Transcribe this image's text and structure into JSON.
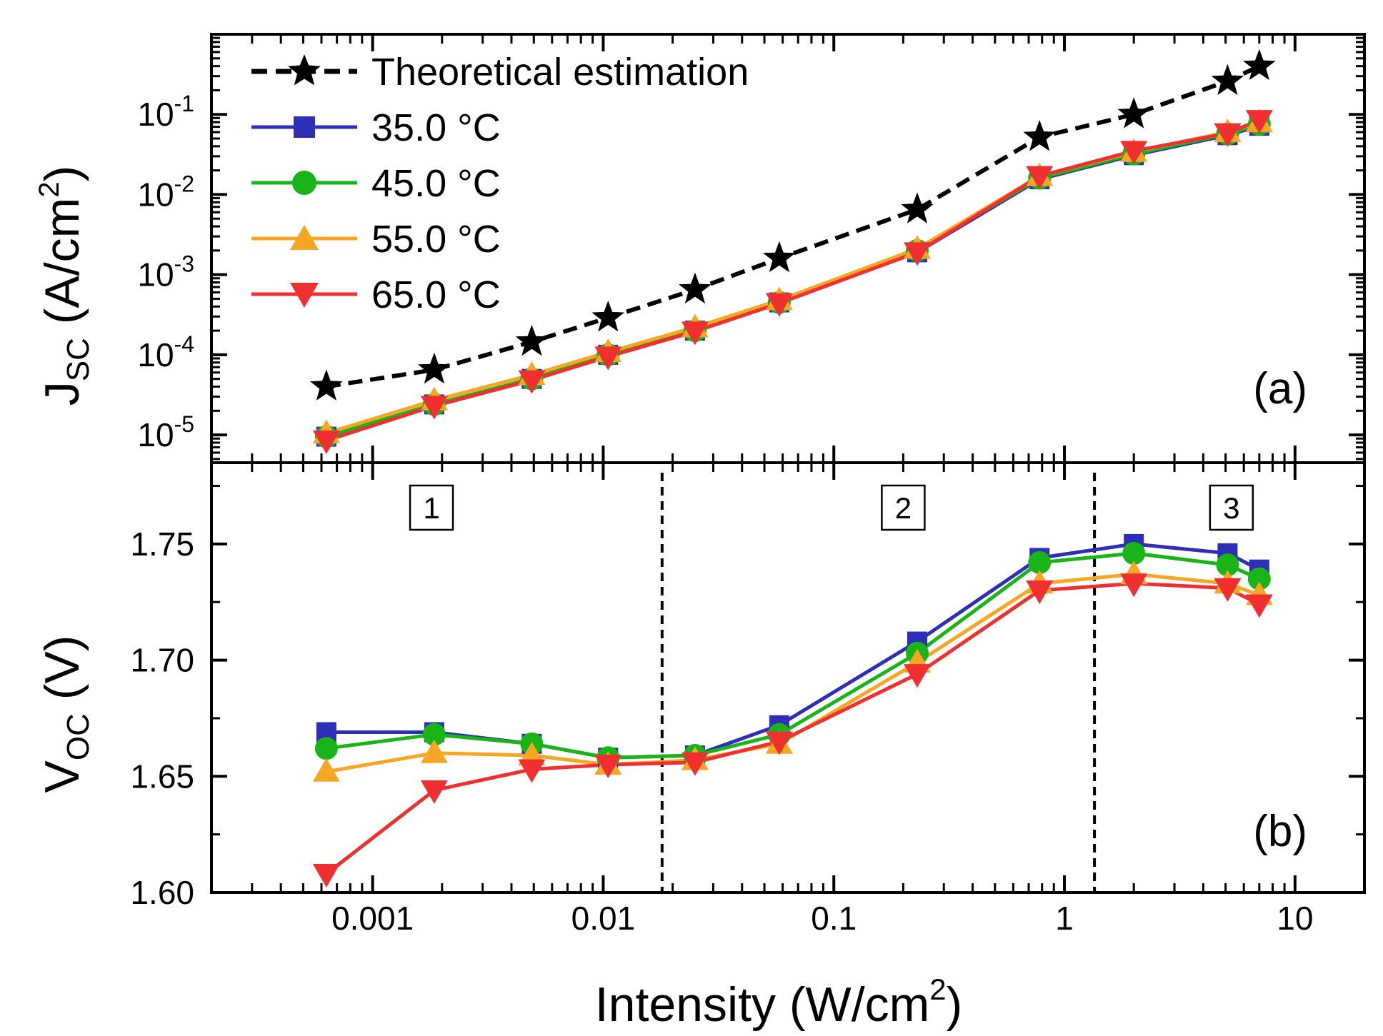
{
  "colors": {
    "theory": "#000000",
    "35.0 °C": "#2e2eb8",
    "45.0 °C": "#18b418",
    "55.0 °C": "#f5a623",
    "65.0 °C": "#f03030"
  },
  "chart_data": [
    {
      "type": "line",
      "panel_label": "(a)",
      "ylabel_main": "J",
      "ylabel_sub": "SC",
      "ylabel_unit": " (A/cm",
      "ylabel_sup": "2",
      "ylabel_close": ")",
      "yscale": "log",
      "xscale": "log",
      "xlim": [
        0.0002,
        20
      ],
      "ylim": [
        4.5e-06,
        1
      ],
      "y_ticks": [
        {
          "value": 1e-05,
          "base": "10",
          "exp": "-5"
        },
        {
          "value": 0.0001,
          "base": "10",
          "exp": "-4"
        },
        {
          "value": 0.001,
          "base": "10",
          "exp": "-3"
        },
        {
          "value": 0.01,
          "base": "10",
          "exp": "-2"
        },
        {
          "value": 0.1,
          "base": "10",
          "exp": "-1"
        }
      ],
      "x": [
        0.00063,
        0.00185,
        0.0049,
        0.0105,
        0.025,
        0.058,
        0.23,
        0.78,
        2.0,
        5.1,
        7.0
      ],
      "series": [
        {
          "name": "Theoretical estimation",
          "marker": "star",
          "dashed": true,
          "values": [
            4e-05,
            6.5e-05,
            0.000145,
            0.00029,
            0.00065,
            0.0016,
            0.0065,
            0.052,
            0.1,
            0.26,
            0.4
          ]
        },
        {
          "name": "35.0 °C",
          "marker": "square",
          "dashed": false,
          "values": [
            9.5e-06,
            2.4e-05,
            5e-05,
            0.0001,
            0.0002,
            0.00045,
            0.0019,
            0.0155,
            0.031,
            0.055,
            0.072
          ]
        },
        {
          "name": "45.0 °C",
          "marker": "circle",
          "dashed": false,
          "values": [
            9.5e-06,
            2.4e-05,
            5e-05,
            0.0001,
            0.0002,
            0.00045,
            0.002,
            0.016,
            0.032,
            0.057,
            0.075
          ]
        },
        {
          "name": "55.0 °C",
          "marker": "triangle-up",
          "dashed": false,
          "values": [
            1.05e-05,
            2.7e-05,
            5.6e-05,
            0.000108,
            0.00022,
            0.00048,
            0.0021,
            0.017,
            0.034,
            0.06,
            0.08
          ]
        },
        {
          "name": "65.0 °C",
          "marker": "triangle-down",
          "dashed": false,
          "values": [
            8.5e-06,
            2.3e-05,
            4.8e-05,
            9.5e-05,
            0.000195,
            0.00044,
            0.0019,
            0.017,
            0.035,
            0.058,
            0.085
          ]
        }
      ]
    },
    {
      "type": "line",
      "panel_label": "(b)",
      "ylabel_main": "V",
      "ylabel_sub": "OC",
      "ylabel_unit": " (V)",
      "yscale": "linear",
      "xscale": "log",
      "xlabel_main": "Intensity (W/cm",
      "xlabel_sup": "2",
      "xlabel_close": ")",
      "xlim": [
        0.0002,
        20
      ],
      "ylim": [
        1.6,
        1.785
      ],
      "y_ticks": [
        {
          "value": 1.6,
          "label": "1.60"
        },
        {
          "value": 1.65,
          "label": "1.65"
        },
        {
          "value": 1.7,
          "label": "1.70"
        },
        {
          "value": 1.75,
          "label": "1.75"
        }
      ],
      "x_ticks": [
        {
          "value": 0.001,
          "label": "0.001"
        },
        {
          "value": 0.01,
          "label": "0.01"
        },
        {
          "value": 0.1,
          "label": "0.1"
        },
        {
          "value": 1,
          "label": "1"
        },
        {
          "value": 10,
          "label": "10"
        }
      ],
      "region_dividers": [
        0.018,
        1.35
      ],
      "regions": [
        {
          "label": "1",
          "x": 0.0018
        },
        {
          "label": "2",
          "x": 0.2
        },
        {
          "label": "3",
          "x": 5.3
        }
      ],
      "x": [
        0.00063,
        0.00185,
        0.0049,
        0.0105,
        0.025,
        0.058,
        0.23,
        0.78,
        2.0,
        5.1,
        7.0
      ],
      "series": [
        {
          "name": "35.0 °C",
          "marker": "square",
          "values": [
            1.669,
            1.669,
            1.664,
            1.658,
            1.659,
            1.672,
            1.708,
            1.744,
            1.75,
            1.746,
            1.739
          ]
        },
        {
          "name": "45.0 °C",
          "marker": "circle",
          "values": [
            1.662,
            1.668,
            1.664,
            1.658,
            1.659,
            1.668,
            1.703,
            1.742,
            1.746,
            1.741,
            1.735
          ]
        },
        {
          "name": "55.0 °C",
          "marker": "triangle-up",
          "values": [
            1.652,
            1.66,
            1.659,
            1.655,
            1.657,
            1.664,
            1.699,
            1.733,
            1.737,
            1.733,
            1.728
          ]
        },
        {
          "name": "65.0 °C",
          "marker": "triangle-down",
          "values": [
            1.608,
            1.644,
            1.653,
            1.655,
            1.656,
            1.665,
            1.694,
            1.73,
            1.733,
            1.731,
            1.724
          ]
        }
      ]
    }
  ]
}
